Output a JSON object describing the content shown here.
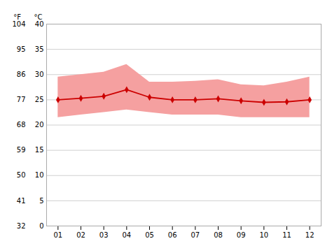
{
  "chart_data": {
    "type": "line",
    "ylabel": "°C",
    "y2label": "°F",
    "x": [
      1,
      2,
      3,
      4,
      5,
      6,
      7,
      8,
      9,
      10,
      11,
      12
    ],
    "xlim": [
      0.5,
      12.5
    ],
    "xticks": [
      {
        "value": 1,
        "label": "01"
      },
      {
        "value": 2,
        "label": "02"
      },
      {
        "value": 3,
        "label": "03"
      },
      {
        "value": 4,
        "label": "04"
      },
      {
        "value": 5,
        "label": "05"
      },
      {
        "value": 6,
        "label": "06"
      },
      {
        "value": 7,
        "label": "07"
      },
      {
        "value": 8,
        "label": "08"
      },
      {
        "value": 9,
        "label": "09"
      },
      {
        "value": 10,
        "label": "10"
      },
      {
        "value": 11,
        "label": "11"
      },
      {
        "value": 12,
        "label": "12"
      }
    ],
    "series": [
      {
        "type": "area",
        "color": "#f5a0a0",
        "low": [
          21.5,
          22.0,
          22.5,
          23.0,
          22.5,
          22.0,
          22.0,
          22.0,
          21.5,
          21.5,
          21.5,
          21.5
        ],
        "high": [
          29.5,
          30.0,
          30.5,
          32.0,
          28.5,
          28.5,
          28.7,
          29.0,
          28.0,
          27.8,
          28.5,
          29.5
        ]
      },
      {
        "type": "line",
        "color": "#cc0000",
        "marker": "diamond",
        "values": [
          25.0,
          25.3,
          25.7,
          27.0,
          25.5,
          25.0,
          25.0,
          25.2,
          24.8,
          24.5,
          24.6,
          25.0
        ]
      }
    ],
    "ylim": [
      0,
      40
    ],
    "yticks": [
      0,
      5,
      10,
      15,
      20,
      25,
      30,
      35,
      40
    ],
    "y2lim": [
      32,
      104
    ],
    "y2ticks": [
      32,
      41,
      50,
      59,
      68,
      77,
      86,
      95,
      104
    ],
    "grid": true
  }
}
